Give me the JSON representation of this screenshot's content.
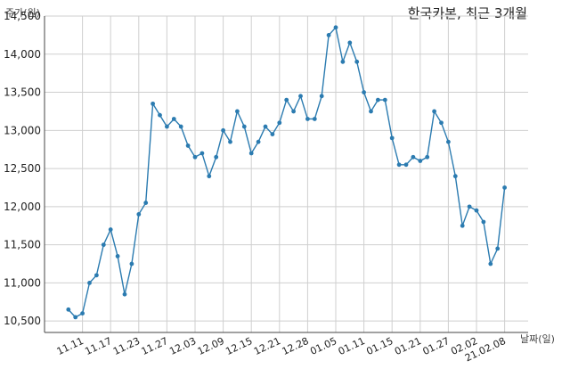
{
  "chart_data": {
    "type": "line",
    "title": "한국카본, 최근 3개월",
    "xlabel": "날짜(일)",
    "ylabel": "주가(원)",
    "ylim": [
      10350,
      14500
    ],
    "yticks": [
      10500,
      11000,
      11500,
      12000,
      12500,
      13000,
      13500,
      14000,
      14500
    ],
    "ytick_labels": [
      "10,500",
      "11,000",
      "11,500",
      "12,000",
      "12,500",
      "13,000",
      "13,500",
      "14,000",
      "14,500"
    ],
    "grid": true,
    "line_color": "#2b7bb0",
    "x_tick_labels": [
      {
        "label": "11.11",
        "index": 2
      },
      {
        "label": "11.17",
        "index": 6
      },
      {
        "label": "11.23",
        "index": 10
      },
      {
        "label": "11.27",
        "index": 14
      },
      {
        "label": "12.03",
        "index": 18
      },
      {
        "label": "12.09",
        "index": 22
      },
      {
        "label": "12.15",
        "index": 26
      },
      {
        "label": "12.21",
        "index": 30
      },
      {
        "label": "12.28",
        "index": 34
      },
      {
        "label": "01.05",
        "index": 38
      },
      {
        "label": "01.11",
        "index": 42
      },
      {
        "label": "01.15",
        "index": 46
      },
      {
        "label": "01.21",
        "index": 50
      },
      {
        "label": "01.27",
        "index": 54
      },
      {
        "label": "02.02",
        "index": 58
      },
      {
        "label": "21.02.08",
        "index": 62
      }
    ],
    "series": [
      {
        "values": [
          10650,
          10550,
          10600,
          11000,
          11100,
          11500,
          11700,
          11350,
          10850,
          11250,
          11900,
          12050,
          13350,
          13200,
          13050,
          13150,
          13050,
          12800,
          12650,
          12700,
          12400,
          12650,
          13000,
          12850,
          13250,
          13050,
          12700,
          12850,
          13050,
          12950,
          13100,
          13400,
          13250,
          13450,
          13150,
          13150,
          13450,
          14250,
          14350,
          13900,
          14150,
          13900,
          13500,
          13250,
          13400,
          13400,
          12900,
          12550,
          12550,
          12650,
          12600,
          12650,
          13250,
          13100,
          12850,
          12400,
          11750,
          12000,
          11950,
          11800,
          11250,
          11450,
          12250
        ]
      }
    ]
  }
}
